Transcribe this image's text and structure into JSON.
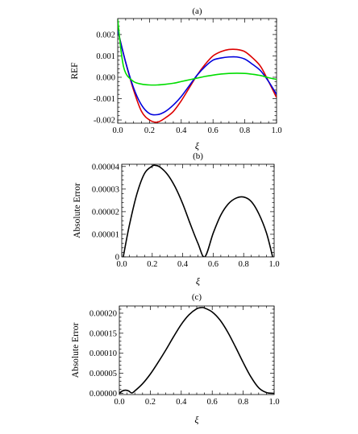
{
  "chart_data": [
    {
      "type": "line",
      "panel_label": "(a)",
      "xlabel": "ξ",
      "ylabel": "REF",
      "xlim": [
        0,
        1
      ],
      "ylim": [
        -0.00215,
        0.00275
      ],
      "xticks": [
        0,
        0.2,
        0.4,
        0.6,
        0.8,
        1.0
      ],
      "xtick_labels": [
        "0.0",
        "0.2",
        "0.4",
        "0.6",
        "0.8",
        "1.0"
      ],
      "yticks": [
        -0.002,
        -0.001,
        0,
        0.001,
        0.002
      ],
      "ytick_labels": [
        "-0.002",
        "-0.001",
        "0.000",
        "0.001",
        "0.002"
      ],
      "grid": false,
      "series": [
        {
          "color": "#dd0000",
          "x": [
            0,
            0.05,
            0.1,
            0.15,
            0.2,
            0.25,
            0.3,
            0.35,
            0.4,
            0.45,
            0.5,
            0.55,
            0.6,
            0.65,
            0.7,
            0.75,
            0.8,
            0.85,
            0.9,
            0.95,
            1.0
          ],
          "y": [
            0.0022,
            0.0007,
            -0.0006,
            -0.0016,
            -0.002,
            -0.0021,
            -0.0019,
            -0.0016,
            -0.0011,
            -0.0005,
            0.0001,
            0.0006,
            0.001,
            0.0012,
            0.0013,
            0.0013,
            0.0012,
            0.0009,
            0.0005,
            -0.0002,
            -0.00095
          ]
        },
        {
          "color": "#0000dd",
          "x": [
            0,
            0.05,
            0.1,
            0.15,
            0.2,
            0.25,
            0.3,
            0.35,
            0.4,
            0.45,
            0.5,
            0.55,
            0.6,
            0.65,
            0.7,
            0.75,
            0.8,
            0.85,
            0.9,
            0.95,
            1.0
          ],
          "y": [
            0.0022,
            0.0007,
            -0.0005,
            -0.0013,
            -0.0017,
            -0.00175,
            -0.0016,
            -0.0013,
            -0.0009,
            -0.0004,
            0.0001,
            0.0005,
            0.0008,
            0.0009,
            0.00095,
            0.00095,
            0.00085,
            0.0006,
            0.0003,
            -0.0002,
            -0.0008
          ]
        },
        {
          "color": "#00dd00",
          "x": [
            0,
            0.025,
            0.05,
            0.1,
            0.15,
            0.2,
            0.25,
            0.3,
            0.35,
            0.4,
            0.45,
            0.5,
            0.55,
            0.6,
            0.65,
            0.7,
            0.75,
            0.8,
            0.85,
            0.9,
            0.95,
            1.0
          ],
          "y": [
            0.0027,
            0.001,
            0.0002,
            -0.0002,
            -0.00032,
            -0.00036,
            -0.00036,
            -0.00033,
            -0.00028,
            -0.0002,
            -0.00012,
            -4e-05,
            4e-05,
            0.0001,
            0.00015,
            0.00018,
            0.00019,
            0.00018,
            0.00014,
            8e-05,
            -2e-05,
            -0.0001
          ]
        }
      ]
    },
    {
      "type": "line",
      "panel_label": "(b)",
      "xlabel": "ξ",
      "ylabel": "Absolute Error",
      "xlim": [
        0,
        1
      ],
      "ylim": [
        0,
        4.1e-05
      ],
      "xticks": [
        0,
        0.2,
        0.4,
        0.6,
        0.8,
        1.0
      ],
      "xtick_labels": [
        "0.0",
        "0.2",
        "0.4",
        "0.6",
        "0.8",
        "1.0"
      ],
      "yticks": [
        0,
        1e-05,
        2e-05,
        3e-05,
        4e-05
      ],
      "ytick_labels": [
        "0",
        "0.00001",
        "0.00002",
        "0.00003",
        "0.00004"
      ],
      "grid": false,
      "series": [
        {
          "color": "#000000",
          "x": [
            0.01,
            0.05,
            0.1,
            0.15,
            0.2,
            0.22,
            0.25,
            0.3,
            0.35,
            0.4,
            0.45,
            0.5,
            0.545,
            0.6,
            0.65,
            0.7,
            0.75,
            0.8,
            0.85,
            0.9,
            0.95,
            0.99
          ],
          "y": [
            0,
            1.4e-05,
            2.8e-05,
            3.7e-05,
            4.02e-05,
            4.05e-05,
            3.98e-05,
            3.65e-05,
            3.1e-05,
            2.35e-05,
            1.45e-05,
            6e-06,
            0,
            1.05e-05,
            1.85e-05,
            2.35e-05,
            2.6e-05,
            2.65e-05,
            2.45e-05,
            1.9e-05,
            1.05e-05,
            0
          ]
        }
      ]
    },
    {
      "type": "line",
      "panel_label": "(c)",
      "xlabel": "ξ",
      "ylabel": "Absolute Error",
      "xlim": [
        0,
        1
      ],
      "ylim": [
        -3e-06,
        0.000218
      ],
      "xticks": [
        0,
        0.2,
        0.4,
        0.6,
        0.8,
        1.0
      ],
      "xtick_labels": [
        "0.0",
        "0.2",
        "0.4",
        "0.6",
        "0.8",
        "1.0"
      ],
      "yticks": [
        0,
        5e-05,
        0.0001,
        0.00015,
        0.0002
      ],
      "ytick_labels": [
        "0.00000",
        "0.00005",
        "0.00010",
        "0.00015",
        "0.00020"
      ],
      "grid": false,
      "series": [
        {
          "color": "#000000",
          "x": [
            0,
            0.02,
            0.04,
            0.06,
            0.08,
            0.1,
            0.15,
            0.2,
            0.25,
            0.3,
            0.35,
            0.4,
            0.45,
            0.5,
            0.53,
            0.55,
            0.6,
            0.65,
            0.7,
            0.75,
            0.8,
            0.85,
            0.9,
            0.95,
            1.0
          ],
          "y": [
            0,
            6e-06,
            8e-06,
            6e-06,
            1e-06,
            6e-06,
            2.4e-05,
            4.8e-05,
            7.7e-05,
            0.000108,
            0.000141,
            0.000172,
            0.000196,
            0.000211,
            0.000214,
            0.000213,
            0.000203,
            0.000183,
            0.000153,
            0.000116,
            7.7e-05,
            4.1e-05,
            1.4e-05,
            2e-06,
            0
          ]
        }
      ]
    }
  ]
}
